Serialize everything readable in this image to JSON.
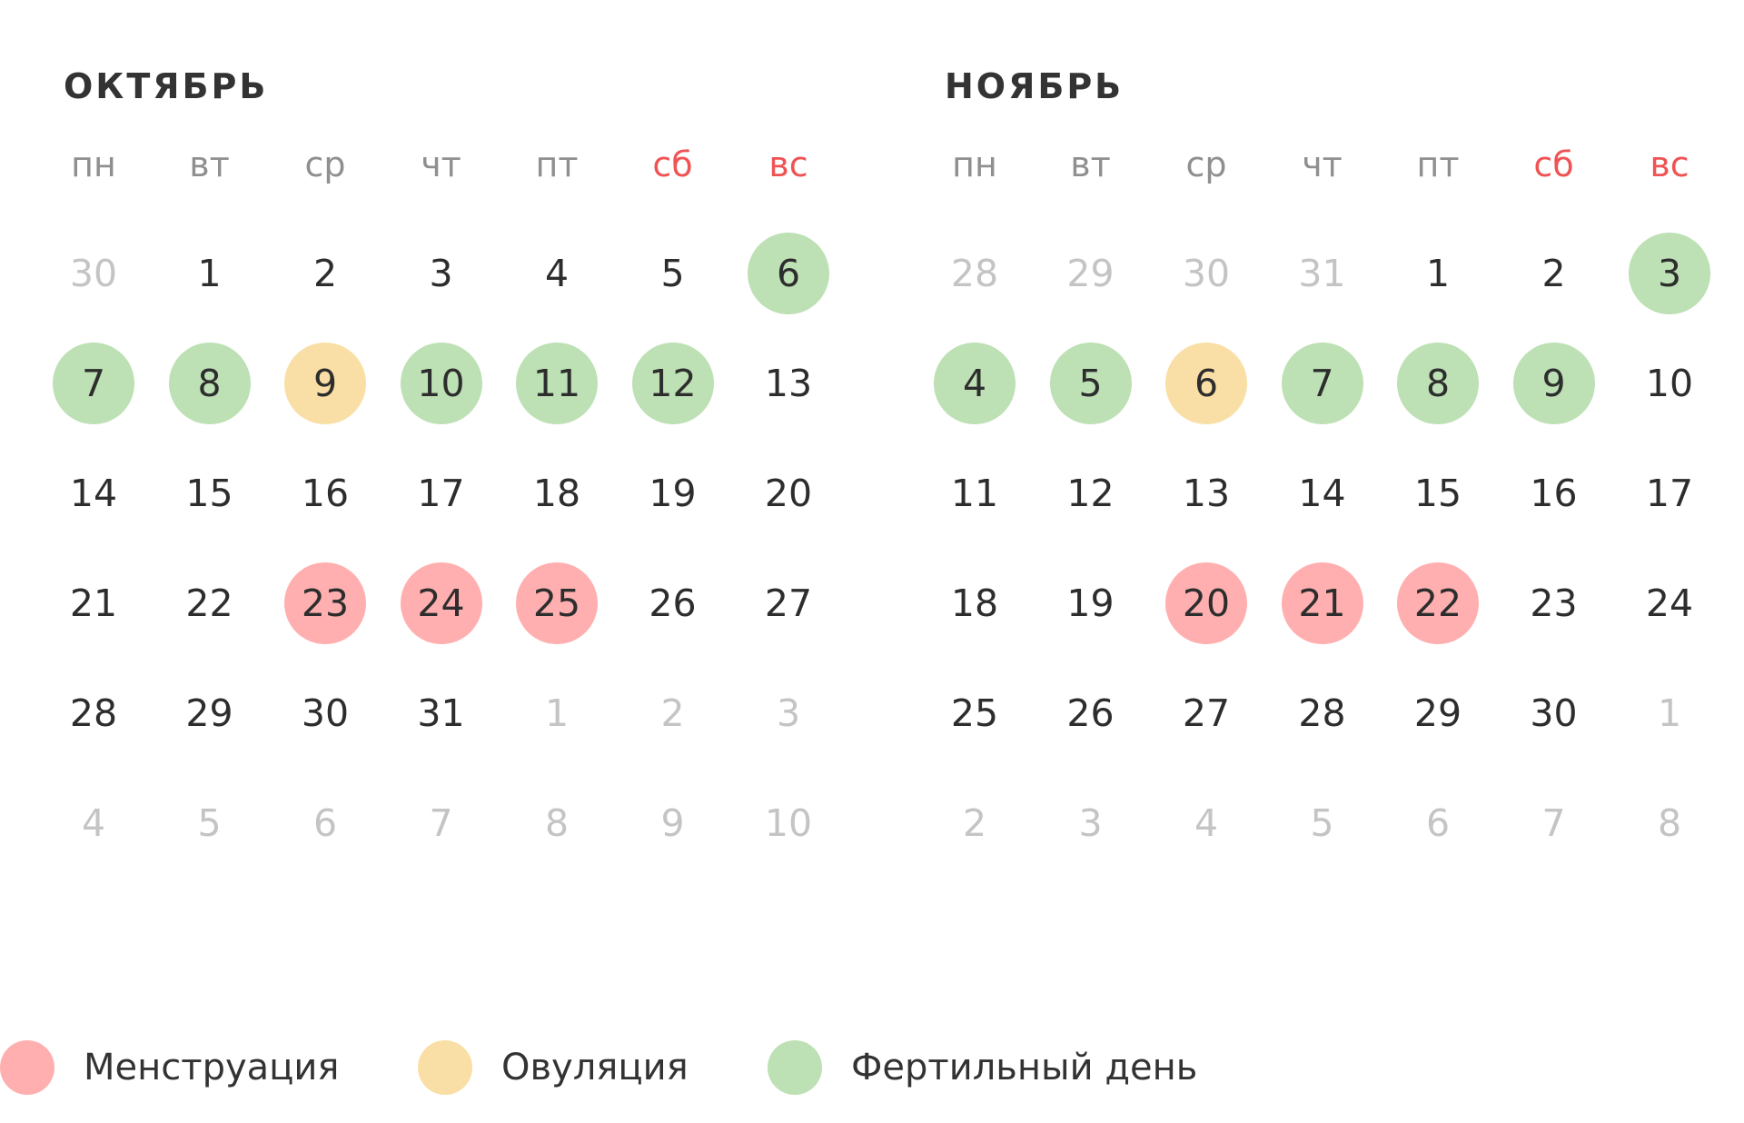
{
  "colors": {
    "menstruation": "#ffafaf",
    "ovulation": "#f9dfa5",
    "fertile": "#bde0b4",
    "weekend_header": "#ef5353"
  },
  "weekdays": [
    "пн",
    "вт",
    "ср",
    "чт",
    "пт",
    "сб",
    "вс"
  ],
  "months": [
    {
      "title": "ОКТЯБРЬ",
      "days": [
        [
          "30",
          "other"
        ],
        [
          "1",
          ""
        ],
        [
          "2",
          ""
        ],
        [
          "3",
          ""
        ],
        [
          "4",
          ""
        ],
        [
          "5",
          ""
        ],
        [
          "6",
          "fertile"
        ],
        [
          "7",
          "fertile"
        ],
        [
          "8",
          "fertile"
        ],
        [
          "9",
          "ovulation"
        ],
        [
          "10",
          "fertile"
        ],
        [
          "11",
          "fertile"
        ],
        [
          "12",
          "fertile"
        ],
        [
          "13",
          ""
        ],
        [
          "14",
          ""
        ],
        [
          "15",
          ""
        ],
        [
          "16",
          ""
        ],
        [
          "17",
          ""
        ],
        [
          "18",
          ""
        ],
        [
          "19",
          ""
        ],
        [
          "20",
          ""
        ],
        [
          "21",
          ""
        ],
        [
          "22",
          ""
        ],
        [
          "23",
          "menstruation"
        ],
        [
          "24",
          "menstruation"
        ],
        [
          "25",
          "menstruation"
        ],
        [
          "26",
          ""
        ],
        [
          "27",
          ""
        ],
        [
          "28",
          ""
        ],
        [
          "29",
          ""
        ],
        [
          "30",
          ""
        ],
        [
          "31",
          ""
        ],
        [
          "1",
          "other"
        ],
        [
          "2",
          "other"
        ],
        [
          "3",
          "other"
        ],
        [
          "4",
          "other"
        ],
        [
          "5",
          "other"
        ],
        [
          "6",
          "other"
        ],
        [
          "7",
          "other"
        ],
        [
          "8",
          "other"
        ],
        [
          "9",
          "other"
        ],
        [
          "10",
          "other"
        ]
      ]
    },
    {
      "title": "НОЯБРЬ",
      "days": [
        [
          "28",
          "other"
        ],
        [
          "29",
          "other"
        ],
        [
          "30",
          "other"
        ],
        [
          "31",
          "other"
        ],
        [
          "1",
          ""
        ],
        [
          "2",
          ""
        ],
        [
          "3",
          "fertile"
        ],
        [
          "4",
          "fertile"
        ],
        [
          "5",
          "fertile"
        ],
        [
          "6",
          "ovulation"
        ],
        [
          "7",
          "fertile"
        ],
        [
          "8",
          "fertile"
        ],
        [
          "9",
          "fertile"
        ],
        [
          "10",
          ""
        ],
        [
          "11",
          ""
        ],
        [
          "12",
          ""
        ],
        [
          "13",
          ""
        ],
        [
          "14",
          ""
        ],
        [
          "15",
          ""
        ],
        [
          "16",
          ""
        ],
        [
          "17",
          ""
        ],
        [
          "18",
          ""
        ],
        [
          "19",
          ""
        ],
        [
          "20",
          "menstruation"
        ],
        [
          "21",
          "menstruation"
        ],
        [
          "22",
          "menstruation"
        ],
        [
          "23",
          ""
        ],
        [
          "24",
          ""
        ],
        [
          "25",
          ""
        ],
        [
          "26",
          ""
        ],
        [
          "27",
          ""
        ],
        [
          "28",
          ""
        ],
        [
          "29",
          ""
        ],
        [
          "30",
          ""
        ],
        [
          "1",
          "other"
        ],
        [
          "2",
          "other"
        ],
        [
          "3",
          "other"
        ],
        [
          "4",
          "other"
        ],
        [
          "5",
          "other"
        ],
        [
          "6",
          "other"
        ],
        [
          "7",
          "other"
        ],
        [
          "8",
          "other"
        ]
      ]
    }
  ],
  "legend": [
    {
      "label": "Менструация",
      "status": "menstruation"
    },
    {
      "label": "Овуляция",
      "status": "ovulation"
    },
    {
      "label": "Фертильный день",
      "status": "fertile"
    }
  ]
}
